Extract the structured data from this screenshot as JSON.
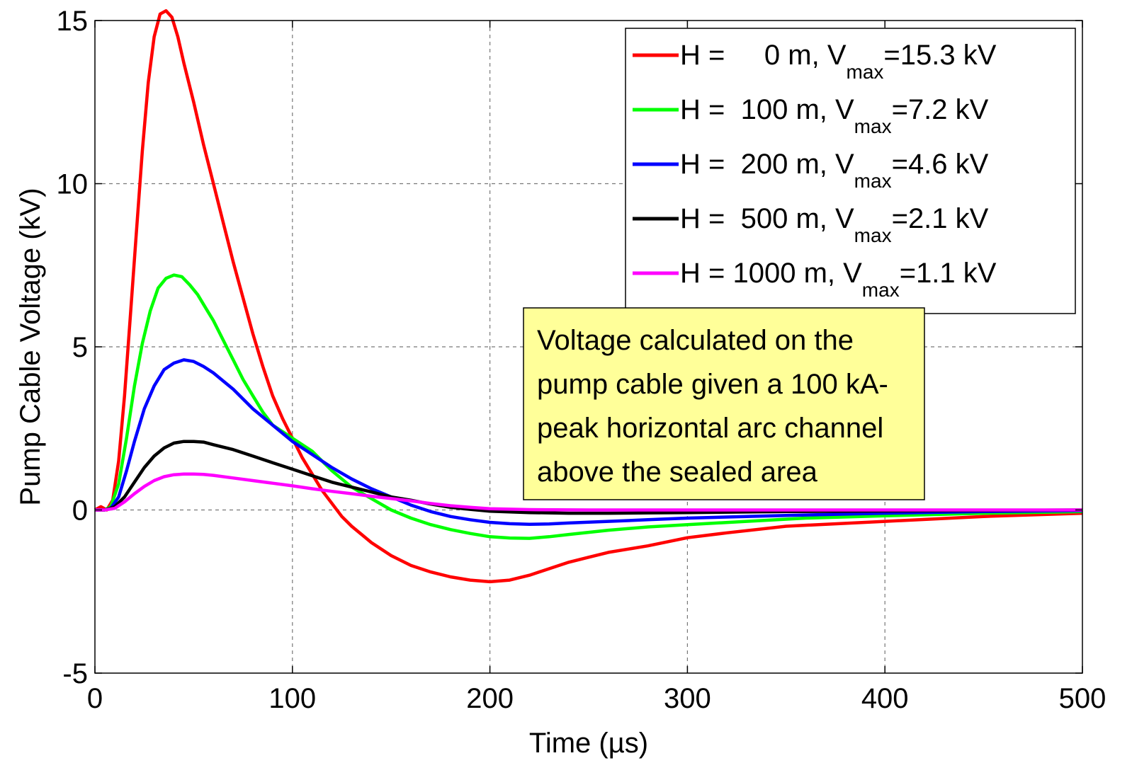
{
  "chart_data": {
    "type": "line",
    "title": "",
    "xlabel": "Time (µs)",
    "ylabel": "Pump Cable Voltage (kV)",
    "xlim": [
      0,
      500
    ],
    "ylim": [
      -5,
      15
    ],
    "xticks": [
      0,
      100,
      200,
      300,
      400,
      500
    ],
    "yticks": [
      -5,
      0,
      5,
      10,
      15
    ],
    "xtick_labels": [
      "0",
      "100",
      "200",
      "300",
      "400",
      "500"
    ],
    "ytick_labels": [
      "-5",
      "0",
      "5",
      "10",
      "15"
    ],
    "grid": true,
    "legend_position": "top-right",
    "series": [
      {
        "name": "H =     0 m, Vmax=15.3 kV",
        "legend_pre": "H =     0 m, V",
        "legend_sub": "max",
        "legend_post": "=15.3 kV",
        "color": "#ff0000",
        "points": [
          [
            0,
            0
          ],
          [
            3,
            0.1
          ],
          [
            6,
            0
          ],
          [
            9,
            0.3
          ],
          [
            12,
            1.5
          ],
          [
            15,
            3.5
          ],
          [
            18,
            6
          ],
          [
            21,
            8.5
          ],
          [
            24,
            11
          ],
          [
            27,
            13.1
          ],
          [
            30,
            14.5
          ],
          [
            33,
            15.2
          ],
          [
            36,
            15.3
          ],
          [
            39,
            15.1
          ],
          [
            42,
            14.5
          ],
          [
            45,
            13.7
          ],
          [
            50,
            12.5
          ],
          [
            55,
            11.2
          ],
          [
            60,
            10
          ],
          [
            65,
            8.8
          ],
          [
            70,
            7.6
          ],
          [
            75,
            6.5
          ],
          [
            80,
            5.4
          ],
          [
            85,
            4.4
          ],
          [
            90,
            3.5
          ],
          [
            95,
            2.8
          ],
          [
            100,
            2.2
          ],
          [
            105,
            1.6
          ],
          [
            110,
            1.1
          ],
          [
            115,
            0.6
          ],
          [
            120,
            0.2
          ],
          [
            125,
            -0.2
          ],
          [
            130,
            -0.5
          ],
          [
            140,
            -1.0
          ],
          [
            150,
            -1.4
          ],
          [
            160,
            -1.7
          ],
          [
            170,
            -1.9
          ],
          [
            180,
            -2.05
          ],
          [
            190,
            -2.15
          ],
          [
            200,
            -2.2
          ],
          [
            210,
            -2.15
          ],
          [
            220,
            -2.0
          ],
          [
            230,
            -1.8
          ],
          [
            240,
            -1.6
          ],
          [
            250,
            -1.45
          ],
          [
            260,
            -1.3
          ],
          [
            280,
            -1.1
          ],
          [
            300,
            -0.85
          ],
          [
            320,
            -0.7
          ],
          [
            350,
            -0.5
          ],
          [
            400,
            -0.35
          ],
          [
            450,
            -0.2
          ],
          [
            500,
            -0.1
          ]
        ]
      },
      {
        "name": "H =  100 m, Vmax=7.2 kV",
        "legend_pre": "H =  100 m, V",
        "legend_sub": "max",
        "legend_post": "=7.2 kV",
        "color": "#00ff00",
        "points": [
          [
            0,
            0
          ],
          [
            5,
            0
          ],
          [
            8,
            0.1
          ],
          [
            12,
            0.8
          ],
          [
            16,
            2.2
          ],
          [
            20,
            3.8
          ],
          [
            24,
            5.1
          ],
          [
            28,
            6.1
          ],
          [
            32,
            6.8
          ],
          [
            36,
            7.1
          ],
          [
            40,
            7.2
          ],
          [
            44,
            7.15
          ],
          [
            48,
            6.9
          ],
          [
            52,
            6.6
          ],
          [
            56,
            6.2
          ],
          [
            60,
            5.8
          ],
          [
            65,
            5.2
          ],
          [
            70,
            4.6
          ],
          [
            75,
            4.0
          ],
          [
            80,
            3.5
          ],
          [
            85,
            3.0
          ],
          [
            90,
            2.6
          ],
          [
            100,
            2.2
          ],
          [
            110,
            1.8
          ],
          [
            120,
            1.2
          ],
          [
            130,
            0.7
          ],
          [
            140,
            0.35
          ],
          [
            150,
            0.0
          ],
          [
            160,
            -0.25
          ],
          [
            170,
            -0.45
          ],
          [
            180,
            -0.6
          ],
          [
            190,
            -0.72
          ],
          [
            200,
            -0.82
          ],
          [
            210,
            -0.86
          ],
          [
            220,
            -0.87
          ],
          [
            230,
            -0.82
          ],
          [
            240,
            -0.75
          ],
          [
            260,
            -0.62
          ],
          [
            280,
            -0.52
          ],
          [
            300,
            -0.45
          ],
          [
            330,
            -0.35
          ],
          [
            360,
            -0.25
          ],
          [
            400,
            -0.18
          ],
          [
            450,
            -0.1
          ],
          [
            500,
            -0.05
          ]
        ]
      },
      {
        "name": "H =  200 m, Vmax=4.6 kV",
        "legend_pre": "H =  200 m, V",
        "legend_sub": "max",
        "legend_post": "=4.6 kV",
        "color": "#0000ff",
        "points": [
          [
            0,
            0
          ],
          [
            5,
            0
          ],
          [
            8,
            0.05
          ],
          [
            12,
            0.4
          ],
          [
            16,
            1.2
          ],
          [
            20,
            2.1
          ],
          [
            25,
            3.1
          ],
          [
            30,
            3.8
          ],
          [
            35,
            4.3
          ],
          [
            40,
            4.5
          ],
          [
            45,
            4.6
          ],
          [
            50,
            4.55
          ],
          [
            55,
            4.4
          ],
          [
            60,
            4.2
          ],
          [
            65,
            3.95
          ],
          [
            70,
            3.7
          ],
          [
            80,
            3.1
          ],
          [
            90,
            2.6
          ],
          [
            100,
            2.1
          ],
          [
            110,
            1.7
          ],
          [
            120,
            1.3
          ],
          [
            130,
            0.95
          ],
          [
            140,
            0.65
          ],
          [
            150,
            0.4
          ],
          [
            160,
            0.15
          ],
          [
            170,
            -0.05
          ],
          [
            180,
            -0.2
          ],
          [
            190,
            -0.3
          ],
          [
            200,
            -0.38
          ],
          [
            210,
            -0.42
          ],
          [
            220,
            -0.44
          ],
          [
            230,
            -0.43
          ],
          [
            240,
            -0.4
          ],
          [
            260,
            -0.35
          ],
          [
            280,
            -0.3
          ],
          [
            300,
            -0.25
          ],
          [
            350,
            -0.17
          ],
          [
            400,
            -0.1
          ],
          [
            450,
            -0.05
          ],
          [
            500,
            -0.02
          ]
        ]
      },
      {
        "name": "H =  500 m, Vmax=2.1 kV",
        "legend_pre": "H =  500 m, V",
        "legend_sub": "max",
        "legend_post": "=2.1 kV",
        "color": "#000000",
        "points": [
          [
            0,
            0
          ],
          [
            5,
            0
          ],
          [
            10,
            0.1
          ],
          [
            15,
            0.4
          ],
          [
            20,
            0.85
          ],
          [
            25,
            1.3
          ],
          [
            30,
            1.65
          ],
          [
            35,
            1.9
          ],
          [
            40,
            2.05
          ],
          [
            45,
            2.1
          ],
          [
            50,
            2.1
          ],
          [
            55,
            2.08
          ],
          [
            60,
            2.0
          ],
          [
            70,
            1.85
          ],
          [
            80,
            1.65
          ],
          [
            90,
            1.45
          ],
          [
            100,
            1.25
          ],
          [
            110,
            1.05
          ],
          [
            120,
            0.85
          ],
          [
            130,
            0.7
          ],
          [
            140,
            0.55
          ],
          [
            150,
            0.4
          ],
          [
            160,
            0.3
          ],
          [
            170,
            0.18
          ],
          [
            180,
            0.08
          ],
          [
            190,
            0.02
          ],
          [
            200,
            -0.04
          ],
          [
            220,
            -0.08
          ],
          [
            240,
            -0.1
          ],
          [
            260,
            -0.1
          ],
          [
            280,
            -0.09
          ],
          [
            300,
            -0.08
          ],
          [
            350,
            -0.05
          ],
          [
            400,
            -0.03
          ],
          [
            500,
            0.0
          ]
        ]
      },
      {
        "name": "H = 1000 m, Vmax=1.1 kV",
        "legend_pre": "H = 1000 m, V",
        "legend_sub": "max",
        "legend_post": "=1.1 kV",
        "color": "#ff00ff",
        "points": [
          [
            0,
            0
          ],
          [
            5,
            0
          ],
          [
            10,
            0.05
          ],
          [
            15,
            0.25
          ],
          [
            20,
            0.5
          ],
          [
            25,
            0.72
          ],
          [
            30,
            0.9
          ],
          [
            35,
            1.02
          ],
          [
            40,
            1.08
          ],
          [
            45,
            1.1
          ],
          [
            50,
            1.1
          ],
          [
            55,
            1.09
          ],
          [
            60,
            1.06
          ],
          [
            70,
            0.98
          ],
          [
            80,
            0.9
          ],
          [
            90,
            0.82
          ],
          [
            100,
            0.74
          ],
          [
            110,
            0.65
          ],
          [
            120,
            0.57
          ],
          [
            130,
            0.5
          ],
          [
            140,
            0.42
          ],
          [
            150,
            0.35
          ],
          [
            160,
            0.28
          ],
          [
            170,
            0.2
          ],
          [
            180,
            0.13
          ],
          [
            190,
            0.08
          ],
          [
            200,
            0.04
          ],
          [
            220,
            0.01
          ],
          [
            250,
            0.0
          ],
          [
            300,
            0.0
          ],
          [
            400,
            0.0
          ],
          [
            500,
            0.0
          ]
        ]
      }
    ],
    "annotation": {
      "lines": [
        "Voltage calculated on the",
        "pump cable given a 100 kA-",
        "peak horizontal arc channel",
        "above the sealed area"
      ],
      "background": "#ffff99"
    }
  }
}
